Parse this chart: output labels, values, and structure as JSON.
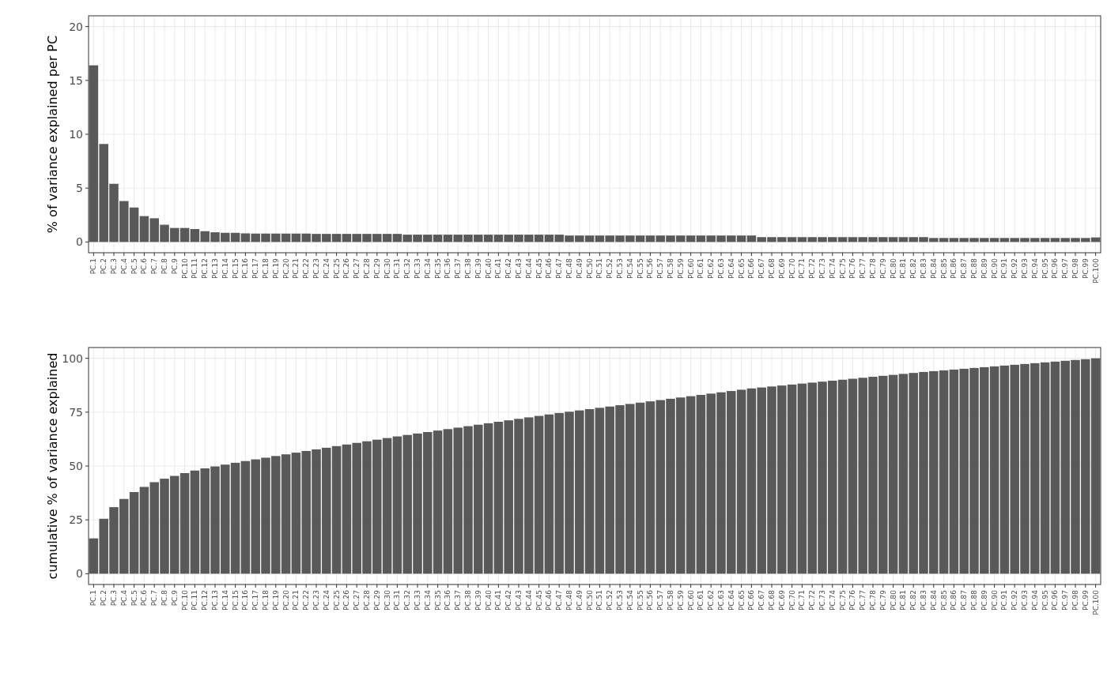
{
  "chart_data": [
    {
      "type": "bar",
      "ylabel": "% of variance explained per PC",
      "categories": [
        "PC.1",
        "PC.2",
        "PC.3",
        "PC.4",
        "PC.5",
        "PC.6",
        "PC.7",
        "PC.8",
        "PC.9",
        "PC.10",
        "PC.11",
        "PC.12",
        "PC.13",
        "PC.14",
        "PC.15",
        "PC.16",
        "PC.17",
        "PC.18",
        "PC.19",
        "PC.20",
        "PC.21",
        "PC.22",
        "PC.23",
        "PC.24",
        "PC.25",
        "PC.26",
        "PC.27",
        "PC.28",
        "PC.29",
        "PC.30",
        "PC.31",
        "PC.32",
        "PC.33",
        "PC.34",
        "PC.35",
        "PC.36",
        "PC.37",
        "PC.38",
        "PC.39",
        "PC.40",
        "PC.41",
        "PC.42",
        "PC.43",
        "PC.44",
        "PC.45",
        "PC.46",
        "PC.47",
        "PC.48",
        "PC.49",
        "PC.50",
        "PC.51",
        "PC.52",
        "PC.53",
        "PC.54",
        "PC.55",
        "PC.56",
        "PC.57",
        "PC.58",
        "PC.59",
        "PC.60",
        "PC.61",
        "PC.62",
        "PC.63",
        "PC.64",
        "PC.65",
        "PC.66",
        "PC.67",
        "PC.68",
        "PC.69",
        "PC.70",
        "PC.71",
        "PC.72",
        "PC.73",
        "PC.74",
        "PC.75",
        "PC.76",
        "PC.77",
        "PC.78",
        "PC.79",
        "PC.80",
        "PC.81",
        "PC.82",
        "PC.83",
        "PC.84",
        "PC.85",
        "PC.86",
        "PC.87",
        "PC.88",
        "PC.89",
        "PC.90",
        "PC.91",
        "PC.92",
        "PC.93",
        "PC.94",
        "PC.95",
        "PC.96",
        "PC.97",
        "PC.98",
        "PC.99",
        "PC.100"
      ],
      "values": [
        16.4,
        9.1,
        5.4,
        3.8,
        3.2,
        2.4,
        2.2,
        1.6,
        1.3,
        1.3,
        1.2,
        1.0,
        0.9,
        0.85,
        0.85,
        0.8,
        0.78,
        0.78,
        0.78,
        0.78,
        0.78,
        0.78,
        0.75,
        0.75,
        0.75,
        0.75,
        0.75,
        0.75,
        0.75,
        0.75,
        0.75,
        0.68,
        0.68,
        0.68,
        0.68,
        0.68,
        0.68,
        0.68,
        0.68,
        0.68,
        0.68,
        0.68,
        0.68,
        0.68,
        0.68,
        0.68,
        0.68,
        0.6,
        0.6,
        0.6,
        0.6,
        0.6,
        0.6,
        0.6,
        0.6,
        0.6,
        0.6,
        0.6,
        0.6,
        0.6,
        0.6,
        0.6,
        0.6,
        0.6,
        0.6,
        0.6,
        0.45,
        0.45,
        0.45,
        0.45,
        0.45,
        0.45,
        0.45,
        0.45,
        0.45,
        0.45,
        0.45,
        0.45,
        0.45,
        0.45,
        0.45,
        0.45,
        0.45,
        0.37,
        0.37,
        0.37,
        0.37,
        0.37,
        0.37,
        0.37,
        0.37,
        0.37,
        0.37,
        0.37,
        0.37,
        0.37,
        0.37,
        0.37,
        0.37,
        0.42
      ],
      "color": "#595959",
      "ylim": [
        -1,
        21
      ],
      "yticks": [
        0,
        5,
        10,
        15,
        20
      ],
      "grid": true
    },
    {
      "type": "bar",
      "ylabel": "cumulative % of variance explained",
      "categories": [
        "PC.1",
        "PC.2",
        "PC.3",
        "PC.4",
        "PC.5",
        "PC.6",
        "PC.7",
        "PC.8",
        "PC.9",
        "PC.10",
        "PC.11",
        "PC.12",
        "PC.13",
        "PC.14",
        "PC.15",
        "PC.16",
        "PC.17",
        "PC.18",
        "PC.19",
        "PC.20",
        "PC.21",
        "PC.22",
        "PC.23",
        "PC.24",
        "PC.25",
        "PC.26",
        "PC.27",
        "PC.28",
        "PC.29",
        "PC.30",
        "PC.31",
        "PC.32",
        "PC.33",
        "PC.34",
        "PC.35",
        "PC.36",
        "PC.37",
        "PC.38",
        "PC.39",
        "PC.40",
        "PC.41",
        "PC.42",
        "PC.43",
        "PC.44",
        "PC.45",
        "PC.46",
        "PC.47",
        "PC.48",
        "PC.49",
        "PC.50",
        "PC.51",
        "PC.52",
        "PC.53",
        "PC.54",
        "PC.55",
        "PC.56",
        "PC.57",
        "PC.58",
        "PC.59",
        "PC.60",
        "PC.61",
        "PC.62",
        "PC.63",
        "PC.64",
        "PC.65",
        "PC.66",
        "PC.67",
        "PC.68",
        "PC.69",
        "PC.70",
        "PC.71",
        "PC.72",
        "PC.73",
        "PC.74",
        "PC.75",
        "PC.76",
        "PC.77",
        "PC.78",
        "PC.79",
        "PC.80",
        "PC.81",
        "PC.82",
        "PC.83",
        "PC.84",
        "PC.85",
        "PC.86",
        "PC.87",
        "PC.88",
        "PC.89",
        "PC.90",
        "PC.91",
        "PC.92",
        "PC.93",
        "PC.94",
        "PC.95",
        "PC.96",
        "PC.97",
        "PC.98",
        "PC.99",
        "PC.100"
      ],
      "values": [
        16.4,
        25.5,
        30.9,
        34.7,
        37.9,
        40.3,
        42.5,
        44.1,
        45.4,
        46.7,
        47.9,
        48.9,
        49.8,
        50.65,
        51.5,
        52.3,
        53.08,
        53.86,
        54.64,
        55.42,
        56.2,
        56.98,
        57.73,
        58.48,
        59.23,
        59.98,
        60.73,
        61.48,
        62.23,
        62.98,
        63.73,
        64.41,
        65.09,
        65.77,
        66.45,
        67.13,
        67.81,
        68.49,
        69.17,
        69.85,
        70.53,
        71.21,
        71.89,
        72.57,
        73.25,
        73.93,
        74.61,
        75.21,
        75.81,
        76.41,
        77.01,
        77.61,
        78.21,
        78.81,
        79.41,
        80.01,
        80.61,
        81.21,
        81.81,
        82.41,
        83.01,
        83.61,
        84.21,
        84.81,
        85.41,
        86.01,
        86.46,
        86.91,
        87.36,
        87.81,
        88.26,
        88.71,
        89.16,
        89.61,
        90.06,
        90.51,
        90.96,
        91.41,
        91.86,
        92.31,
        92.76,
        93.21,
        93.66,
        94.03,
        94.4,
        94.77,
        95.14,
        95.51,
        95.88,
        96.25,
        96.62,
        96.99,
        97.36,
        97.73,
        98.1,
        98.47,
        98.84,
        99.21,
        99.58,
        100
      ],
      "color": "#595959",
      "ylim": [
        -5,
        105
      ],
      "yticks": [
        0,
        25,
        50,
        75,
        100
      ],
      "grid": true
    }
  ]
}
